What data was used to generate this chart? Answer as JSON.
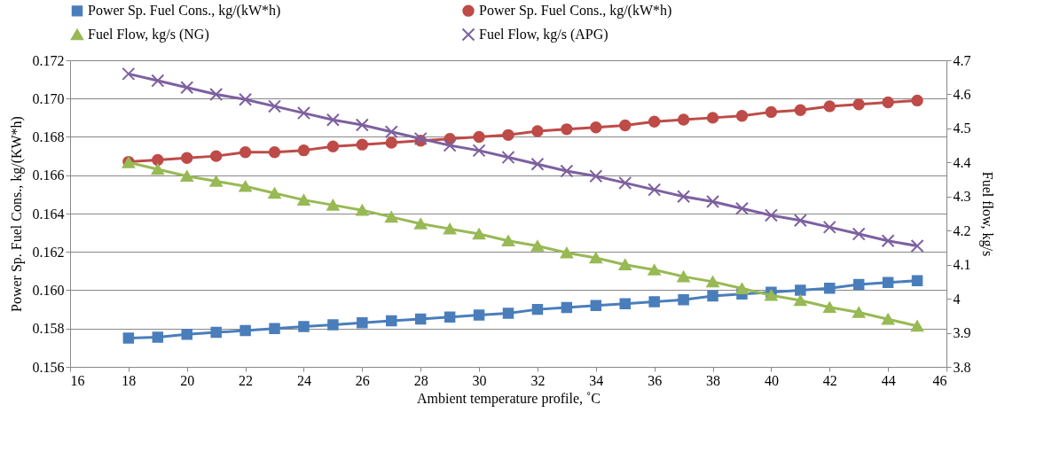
{
  "chart_data": {
    "type": "line",
    "xlabel": "Ambient temperature profile, ˚C",
    "ylabel": "Power Sp. Fuel Cons., kg/(KW*h)",
    "y2label": "Fuel flow, kg/s",
    "x": [
      18,
      19,
      20,
      21,
      22,
      23,
      24,
      25,
      26,
      27,
      28,
      29,
      30,
      31,
      32,
      33,
      34,
      35,
      36,
      37,
      38,
      39,
      40,
      41,
      42,
      43,
      44,
      45
    ],
    "series": [
      {
        "name": "Power Sp. Fuel Cons., kg/(kW*h)",
        "color": "#4a7ebb",
        "marker": "square",
        "values": [
          0.1575,
          0.15755,
          0.1577,
          0.1578,
          0.1579,
          0.158,
          0.1581,
          0.1582,
          0.1583,
          0.1584,
          0.1585,
          0.1586,
          0.1587,
          0.1588,
          0.159,
          0.1591,
          0.1592,
          0.1593,
          0.1594,
          0.1595,
          0.1597,
          0.1598,
          0.1599,
          0.16,
          0.1601,
          0.1603,
          0.1604,
          0.1605
        ]
      },
      {
        "name": "Power Sp. Fuel Cons., kg/(kW*h)",
        "color": "#be4b48",
        "marker": "circle",
        "values": [
          0.1667,
          0.1668,
          0.1669,
          0.167,
          0.1672,
          0.1672,
          0.1673,
          0.1675,
          0.1676,
          0.1677,
          0.1678,
          0.1679,
          0.168,
          0.1681,
          0.1683,
          0.1684,
          0.1685,
          0.1686,
          0.1688,
          0.1689,
          0.169,
          0.1691,
          0.1693,
          0.1694,
          0.1696,
          0.1697,
          0.1698,
          0.1699
        ]
      },
      {
        "name": "Fuel Flow, kg/s (NG)",
        "color": "#98b954",
        "marker": "triangle",
        "axis": "y2",
        "values": [
          4.4,
          4.38,
          4.36,
          4.345,
          4.33,
          4.31,
          4.29,
          4.275,
          4.26,
          4.24,
          4.22,
          4.205,
          4.19,
          4.17,
          4.155,
          4.135,
          4.12,
          4.1,
          4.085,
          4.065,
          4.05,
          4.03,
          4.01,
          3.995,
          3.975,
          3.96,
          3.94,
          3.92
        ]
      },
      {
        "name": "Fuel Flow, kg/s (APG)",
        "color": "#7d60a0",
        "marker": "cross",
        "axis": "y2",
        "values": [
          4.66,
          4.64,
          4.62,
          4.6,
          4.585,
          4.565,
          4.545,
          4.525,
          4.51,
          4.49,
          4.47,
          4.45,
          4.435,
          4.415,
          4.395,
          4.375,
          4.36,
          4.34,
          4.32,
          4.3,
          4.285,
          4.265,
          4.245,
          4.23,
          4.21,
          4.19,
          4.17,
          4.155
        ]
      }
    ],
    "xlim": [
      16,
      46
    ],
    "xticks": [
      16,
      18,
      20,
      22,
      24,
      26,
      28,
      30,
      32,
      34,
      36,
      38,
      40,
      42,
      44,
      46
    ],
    "ylim": [
      0.156,
      0.172
    ],
    "yticks": [
      0.156,
      0.158,
      {
        "value": 0.16,
        "label": "0.160"
      },
      0.162,
      0.164,
      0.166,
      0.168,
      {
        "value": 0.17,
        "label": "0.170"
      },
      0.172
    ],
    "y2lim": [
      3.8,
      4.7
    ],
    "y2ticks": [
      3.8,
      3.9,
      4,
      4.1,
      4.2,
      4.3,
      4.4,
      4.5,
      4.6,
      4.7
    ],
    "grid": "y",
    "legend": "top"
  }
}
